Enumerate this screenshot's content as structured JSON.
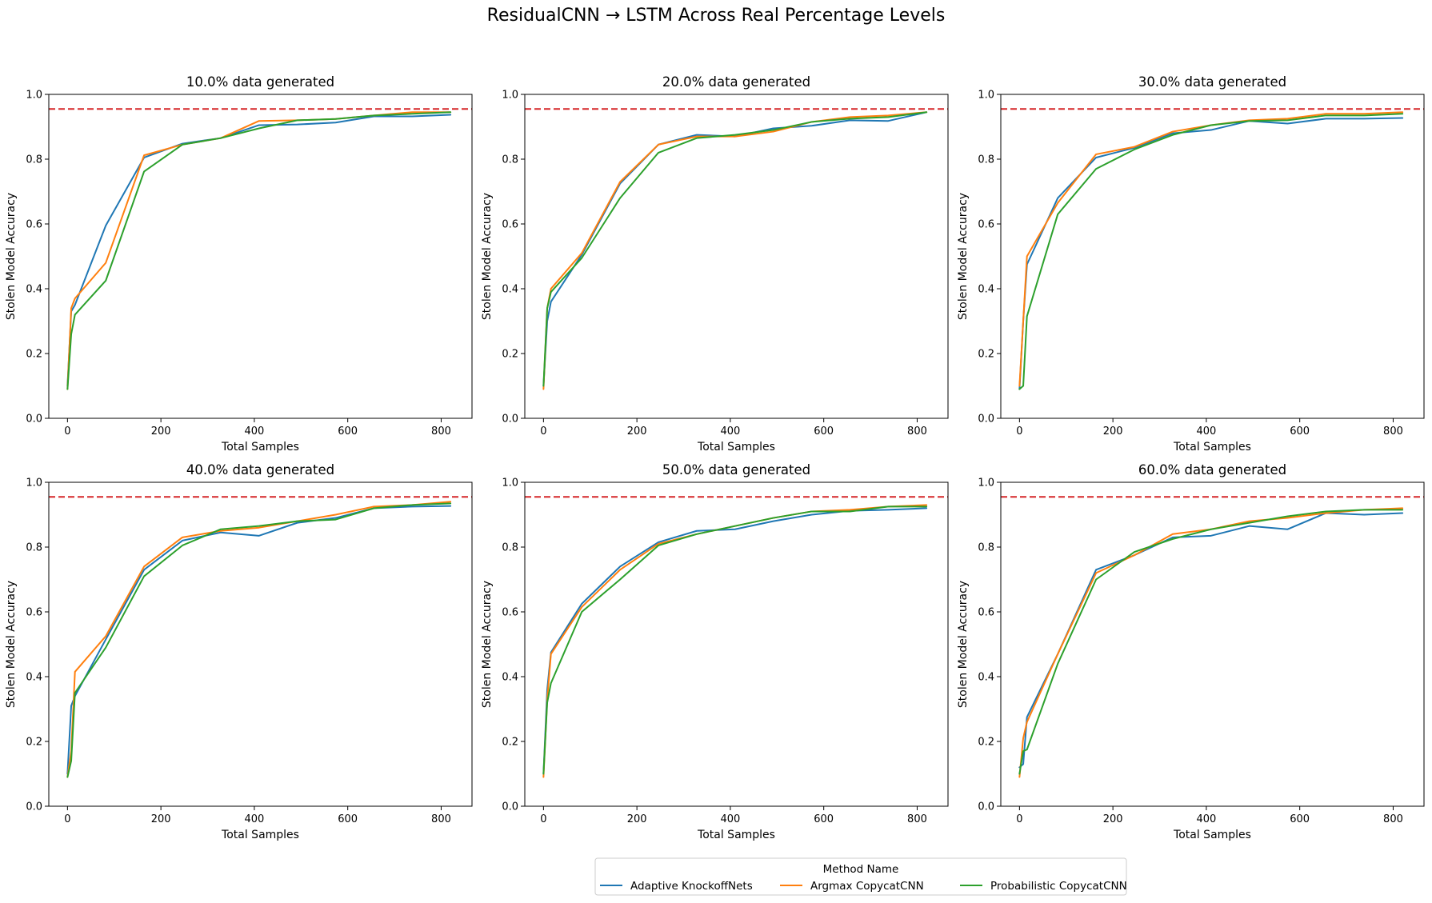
{
  "figure": {
    "title": "ResidualCNN → LSTM Across Real Percentage Levels"
  },
  "legend": {
    "title": "Method Name",
    "placement": "bottom-center",
    "entries": [
      {
        "label": "Adaptive KnockoffNets",
        "color": "#1f77b4"
      },
      {
        "label": "Argmax CopycatCNN",
        "color": "#ff7f0e"
      },
      {
        "label": "Probabilistic CopycatCNN",
        "color": "#2ca02c"
      }
    ]
  },
  "reference_line": {
    "value": 0.955,
    "color": "#d62728",
    "style": "dashed"
  },
  "chart_data": [
    {
      "type": "line",
      "title": "10.0% data generated",
      "xlabel": "Total Samples",
      "ylabel": "Stolen Model Accuracy",
      "xlim": [
        -40,
        866
      ],
      "ylim": [
        0,
        1.0
      ],
      "xticks": [
        0,
        200,
        400,
        600,
        800
      ],
      "yticks": [
        0.0,
        0.2,
        0.4,
        0.6,
        0.8,
        1.0
      ],
      "x": [
        0,
        8,
        16,
        82,
        164,
        246,
        328,
        410,
        492,
        574,
        656,
        738,
        820
      ],
      "series": [
        {
          "name": "Adaptive KnockoffNets",
          "color": "#1f77b4",
          "values": [
            0.1,
            0.33,
            0.35,
            0.595,
            0.805,
            0.848,
            0.865,
            0.905,
            0.907,
            0.913,
            0.932,
            0.932,
            0.937
          ]
        },
        {
          "name": "Argmax CopycatCNN",
          "color": "#ff7f0e",
          "values": [
            0.09,
            0.34,
            0.37,
            0.48,
            0.812,
            0.845,
            0.865,
            0.918,
            0.92,
            0.924,
            0.935,
            0.945,
            0.945
          ]
        },
        {
          "name": "Probabilistic CopycatCNN",
          "color": "#2ca02c",
          "values": [
            0.09,
            0.26,
            0.32,
            0.425,
            0.762,
            0.845,
            0.865,
            0.895,
            0.92,
            0.924,
            0.935,
            0.94,
            0.945
          ]
        }
      ]
    },
    {
      "type": "line",
      "title": "20.0% data generated",
      "xlabel": "Total Samples",
      "ylabel": "Stolen Model Accuracy",
      "xlim": [
        -40,
        866
      ],
      "ylim": [
        0,
        1.0
      ],
      "xticks": [
        0,
        200,
        400,
        600,
        800
      ],
      "yticks": [
        0.0,
        0.2,
        0.4,
        0.6,
        0.8,
        1.0
      ],
      "x": [
        0,
        8,
        16,
        82,
        164,
        246,
        328,
        410,
        492,
        574,
        656,
        738,
        820
      ],
      "series": [
        {
          "name": "Adaptive KnockoffNets",
          "color": "#1f77b4",
          "values": [
            0.1,
            0.3,
            0.36,
            0.505,
            0.725,
            0.845,
            0.875,
            0.87,
            0.895,
            0.903,
            0.92,
            0.918,
            0.945
          ]
        },
        {
          "name": "Argmax CopycatCNN",
          "color": "#ff7f0e",
          "values": [
            0.09,
            0.34,
            0.4,
            0.51,
            0.73,
            0.845,
            0.87,
            0.87,
            0.885,
            0.915,
            0.93,
            0.935,
            0.945
          ]
        },
        {
          "name": "Probabilistic CopycatCNN",
          "color": "#2ca02c",
          "values": [
            0.1,
            0.34,
            0.39,
            0.495,
            0.68,
            0.82,
            0.865,
            0.875,
            0.89,
            0.915,
            0.925,
            0.93,
            0.945
          ]
        }
      ]
    },
    {
      "type": "line",
      "title": "30.0% data generated",
      "xlabel": "Total Samples",
      "ylabel": "Stolen Model Accuracy",
      "xlim": [
        -40,
        866
      ],
      "ylim": [
        0,
        1.0
      ],
      "xticks": [
        0,
        200,
        400,
        600,
        800
      ],
      "yticks": [
        0.0,
        0.2,
        0.4,
        0.6,
        0.8,
        1.0
      ],
      "x": [
        0,
        8,
        16,
        82,
        164,
        246,
        328,
        410,
        492,
        574,
        656,
        738,
        820
      ],
      "series": [
        {
          "name": "Adaptive KnockoffNets",
          "color": "#1f77b4",
          "values": [
            0.09,
            0.3,
            0.475,
            0.68,
            0.805,
            0.835,
            0.88,
            0.89,
            0.918,
            0.91,
            0.925,
            0.925,
            0.927
          ]
        },
        {
          "name": "Argmax CopycatCNN",
          "color": "#ff7f0e",
          "values": [
            0.1,
            0.3,
            0.5,
            0.665,
            0.815,
            0.838,
            0.885,
            0.905,
            0.92,
            0.925,
            0.94,
            0.94,
            0.945
          ]
        },
        {
          "name": "Probabilistic CopycatCNN",
          "color": "#2ca02c",
          "values": [
            0.09,
            0.1,
            0.315,
            0.63,
            0.77,
            0.83,
            0.875,
            0.905,
            0.918,
            0.92,
            0.935,
            0.935,
            0.94
          ]
        }
      ]
    },
    {
      "type": "line",
      "title": "40.0% data generated",
      "xlabel": "Total Samples",
      "ylabel": "Stolen Model Accuracy",
      "xlim": [
        -40,
        866
      ],
      "ylim": [
        0,
        1.0
      ],
      "xticks": [
        0,
        200,
        400,
        600,
        800
      ],
      "yticks": [
        0.0,
        0.2,
        0.4,
        0.6,
        0.8,
        1.0
      ],
      "x": [
        0,
        8,
        16,
        82,
        164,
        246,
        328,
        410,
        492,
        574,
        656,
        738,
        820
      ],
      "series": [
        {
          "name": "Adaptive KnockoffNets",
          "color": "#1f77b4",
          "values": [
            0.1,
            0.31,
            0.34,
            0.515,
            0.73,
            0.82,
            0.845,
            0.835,
            0.875,
            0.89,
            0.92,
            0.925,
            0.927
          ]
        },
        {
          "name": "Argmax CopycatCNN",
          "color": "#ff7f0e",
          "values": [
            0.09,
            0.17,
            0.415,
            0.525,
            0.74,
            0.83,
            0.85,
            0.86,
            0.88,
            0.9,
            0.925,
            0.93,
            0.94
          ]
        },
        {
          "name": "Probabilistic CopycatCNN",
          "color": "#2ca02c",
          "values": [
            0.09,
            0.14,
            0.35,
            0.49,
            0.71,
            0.805,
            0.855,
            0.865,
            0.88,
            0.885,
            0.92,
            0.93,
            0.935
          ]
        }
      ]
    },
    {
      "type": "line",
      "title": "50.0% data generated",
      "xlabel": "Total Samples",
      "ylabel": "Stolen Model Accuracy",
      "xlim": [
        -40,
        866
      ],
      "ylim": [
        0,
        1.0
      ],
      "xticks": [
        0,
        200,
        400,
        600,
        800
      ],
      "yticks": [
        0.0,
        0.2,
        0.4,
        0.6,
        0.8,
        1.0
      ],
      "x": [
        0,
        8,
        16,
        82,
        164,
        246,
        328,
        410,
        492,
        574,
        656,
        738,
        820
      ],
      "series": [
        {
          "name": "Adaptive KnockoffNets",
          "color": "#1f77b4",
          "values": [
            0.1,
            0.36,
            0.475,
            0.625,
            0.74,
            0.815,
            0.85,
            0.855,
            0.88,
            0.9,
            0.912,
            0.915,
            0.92
          ]
        },
        {
          "name": "Argmax CopycatCNN",
          "color": "#ff7f0e",
          "values": [
            0.09,
            0.33,
            0.47,
            0.615,
            0.73,
            0.81,
            0.84,
            0.865,
            0.89,
            0.91,
            0.915,
            0.925,
            0.93
          ]
        },
        {
          "name": "Probabilistic CopycatCNN",
          "color": "#2ca02c",
          "values": [
            0.1,
            0.32,
            0.38,
            0.6,
            0.7,
            0.805,
            0.84,
            0.865,
            0.89,
            0.91,
            0.91,
            0.925,
            0.925
          ]
        }
      ]
    },
    {
      "type": "line",
      "title": "60.0% data generated",
      "xlabel": "Total Samples",
      "ylabel": "Stolen Model Accuracy",
      "xlim": [
        -40,
        866
      ],
      "ylim": [
        0,
        1.0
      ],
      "xticks": [
        0,
        200,
        400,
        600,
        800
      ],
      "yticks": [
        0.0,
        0.2,
        0.4,
        0.6,
        0.8,
        1.0
      ],
      "x": [
        0,
        8,
        16,
        82,
        164,
        246,
        328,
        410,
        492,
        574,
        656,
        738,
        820
      ],
      "series": [
        {
          "name": "Adaptive KnockoffNets",
          "color": "#1f77b4",
          "values": [
            0.12,
            0.13,
            0.275,
            0.47,
            0.73,
            0.775,
            0.83,
            0.835,
            0.865,
            0.855,
            0.905,
            0.9,
            0.905
          ]
        },
        {
          "name": "Argmax CopycatCNN",
          "color": "#ff7f0e",
          "values": [
            0.09,
            0.21,
            0.26,
            0.47,
            0.72,
            0.775,
            0.84,
            0.855,
            0.88,
            0.89,
            0.905,
            0.915,
            0.92
          ]
        },
        {
          "name": "Probabilistic CopycatCNN",
          "color": "#2ca02c",
          "values": [
            0.1,
            0.17,
            0.175,
            0.44,
            0.7,
            0.785,
            0.825,
            0.855,
            0.875,
            0.895,
            0.91,
            0.915,
            0.915
          ]
        }
      ]
    }
  ]
}
